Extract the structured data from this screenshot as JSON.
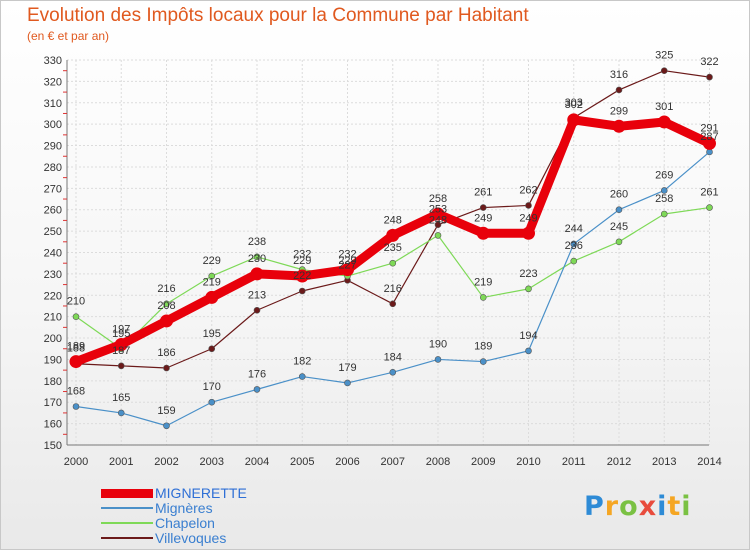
{
  "header": {
    "title": "Evolution des Impôts locaux pour la Commune par Habitant",
    "subtitle": "(en € et par an)"
  },
  "chart_data": {
    "type": "line",
    "title": "Evolution des Impôts locaux pour la Commune par Habitant",
    "subtitle": "(en € et par an)",
    "xlabel": "",
    "ylabel": "",
    "ylim": [
      150,
      330
    ],
    "yticks": [
      150,
      160,
      170,
      180,
      190,
      200,
      210,
      220,
      230,
      240,
      250,
      260,
      270,
      280,
      290,
      300,
      310,
      320,
      330
    ],
    "grid": true,
    "legend_position": "bottom-left",
    "categories": [
      "2000",
      "2001",
      "2002",
      "2003",
      "2004",
      "2005",
      "2006",
      "2007",
      "2008",
      "2009",
      "2010",
      "2011",
      "2012",
      "2013",
      "2014"
    ],
    "series": [
      {
        "name": "MIGNERETTE",
        "color": "#e8000b",
        "values": [
          189,
          197,
          208,
          219,
          230,
          229,
          232,
          248,
          258,
          249,
          249,
          302,
          299,
          301,
          291
        ]
      },
      {
        "name": "Mignères",
        "color": "#4a90c8",
        "values": [
          168,
          165,
          159,
          170,
          176,
          182,
          179,
          184,
          190,
          189,
          194,
          244,
          260,
          269,
          287
        ]
      },
      {
        "name": "Chapelon",
        "color": "#7ed957",
        "values": [
          210,
          195,
          216,
          229,
          238,
          232,
          229,
          235,
          248,
          219,
          223,
          236,
          245,
          258,
          261
        ]
      },
      {
        "name": "Villevoques",
        "color": "#6b1a1a",
        "values": [
          188,
          187,
          186,
          195,
          213,
          222,
          227,
          216,
          253,
          261,
          262,
          303,
          316,
          325,
          322
        ]
      }
    ]
  },
  "legend": {
    "items": [
      {
        "label": "MIGNERETTE",
        "color": "#e8000b"
      },
      {
        "label": "Mignères",
        "color": "#4a90c8"
      },
      {
        "label": "Chapelon",
        "color": "#7ed957"
      },
      {
        "label": "Villevoques",
        "color": "#6b1a1a"
      }
    ]
  },
  "brand": {
    "letters": [
      "P",
      "r",
      "o",
      "x",
      "i",
      "t",
      "i"
    ],
    "colors": [
      "#2e8bd6",
      "#f5a623",
      "#7ac143",
      "#e84c3d",
      "#2e8bd6",
      "#f5a623",
      "#7ac143"
    ]
  }
}
